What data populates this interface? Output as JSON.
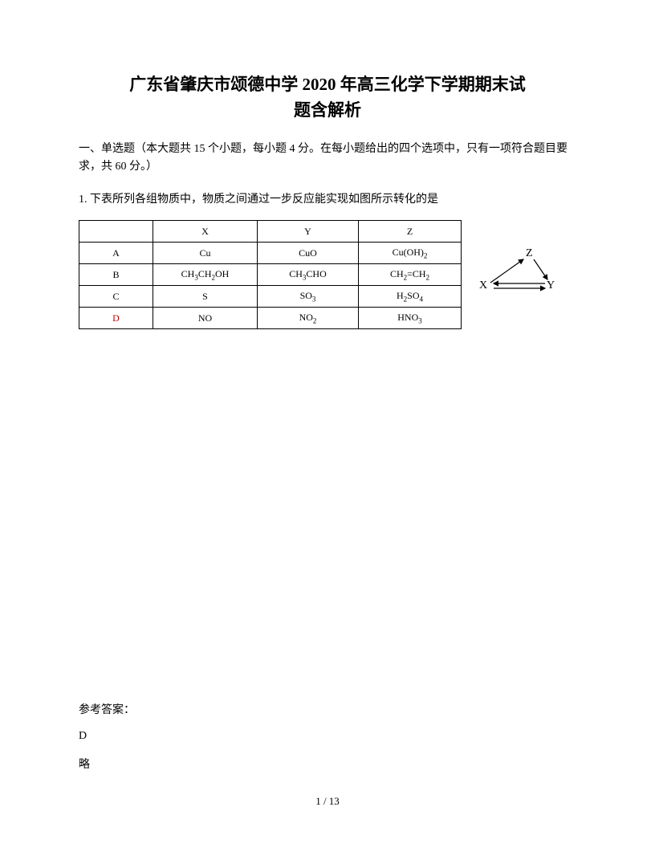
{
  "title_line1": "广东省肇庆市颂德中学 2020 年高三化学下学期期末试",
  "title_line2": "题含解析",
  "section_header": "一、单选题（本大题共 15 个小题，每小题 4 分。在每小题给出的四个选项中，只有一项符合题目要求，共 60 分。）",
  "question_1": "1. 下表所列各组物质中，物质之间通过一步反应能实现如图所示转化的是",
  "table": {
    "headers": {
      "c1": "",
      "c2": "X",
      "c3": "Y",
      "c4": "Z"
    },
    "rows": [
      {
        "label": "A",
        "x": "Cu",
        "y": "CuO",
        "z_html": "Cu(OH)<sub>2</sub>"
      },
      {
        "label": "B",
        "x_html": "CH<sub>3</sub>CH<sub>2</sub>OH",
        "y_html": "CH<sub>3</sub>CHO",
        "z_html": "CH<sub>2</sub>=CH<sub>2</sub>"
      },
      {
        "label": "C",
        "x": "S",
        "y_html": "SO<sub>3</sub>",
        "z_html": "H<sub>2</sub>SO<sub>4</sub>"
      },
      {
        "label": "D",
        "label_red": true,
        "x": "NO",
        "y_html": "NO<sub>2</sub>",
        "z_html": "HNO<sub>3</sub>"
      }
    ]
  },
  "diagram": {
    "z": "Z",
    "x": "X",
    "y": "Y"
  },
  "answer": {
    "label": "参考答案：",
    "letter": "D",
    "note": "略"
  },
  "page_number": "1 / 13",
  "colors": {
    "text": "#000000",
    "red": "#c00000",
    "background": "#ffffff",
    "border": "#000000"
  },
  "fonts": {
    "body": "SimSun",
    "table": "Times New Roman",
    "title_size": 21,
    "body_size": 14,
    "table_size": 12
  }
}
